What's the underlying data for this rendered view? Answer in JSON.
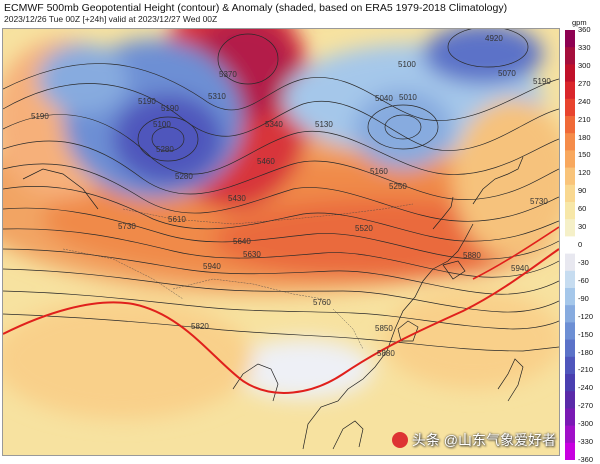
{
  "header": {
    "title": "ECMWF 500mb Geopotential Height (contour) & Anomaly (shaded, based on ERA5 1979-2018 Climatology)",
    "subtitle": "2023/12/26 Tue 00Z [+24h] valid at 2023/12/27 Wed 00Z"
  },
  "colorbar": {
    "unit": "gpm",
    "labels": [
      "360",
      "330",
      "300",
      "270",
      "240",
      "210",
      "180",
      "150",
      "120",
      "90",
      "60",
      "30",
      "0",
      "-30",
      "-60",
      "-90",
      "-120",
      "-150",
      "-180",
      "-210",
      "-240",
      "-270",
      "-300",
      "-330",
      "-360"
    ],
    "colors": [
      "#8e0152",
      "#a50f3c",
      "#c0112a",
      "#d9262b",
      "#e8442e",
      "#f06a38",
      "#f58c4a",
      "#f8a85e",
      "#f9c47a",
      "#f9d890",
      "#f7e7a8",
      "#f5f0c8",
      "#ffffff",
      "#e8e8f0",
      "#c6dcf0",
      "#a5c7ea",
      "#87abdf",
      "#6d8fd4",
      "#5b72c8",
      "#4f56bc",
      "#4a3fb0",
      "#5a2aa8",
      "#7a1ab4",
      "#a010c8",
      "#c800e0"
    ]
  },
  "contour_labels": [
    "4920",
    "5070",
    "5190",
    "5100",
    "5010",
    "5040",
    "5370",
    "5310",
    "5190",
    "5100",
    "5340",
    "5130",
    "5280",
    "5460",
    "5190",
    "5280",
    "5160",
    "5250",
    "5730",
    "5430",
    "5610",
    "5640",
    "5520",
    "5880",
    "5940",
    "5760",
    "5850",
    "5880",
    "5820",
    "5730",
    "5630",
    "5940",
    "5190"
  ],
  "watermark": {
    "text": "头条 @山东气象爱好者"
  }
}
